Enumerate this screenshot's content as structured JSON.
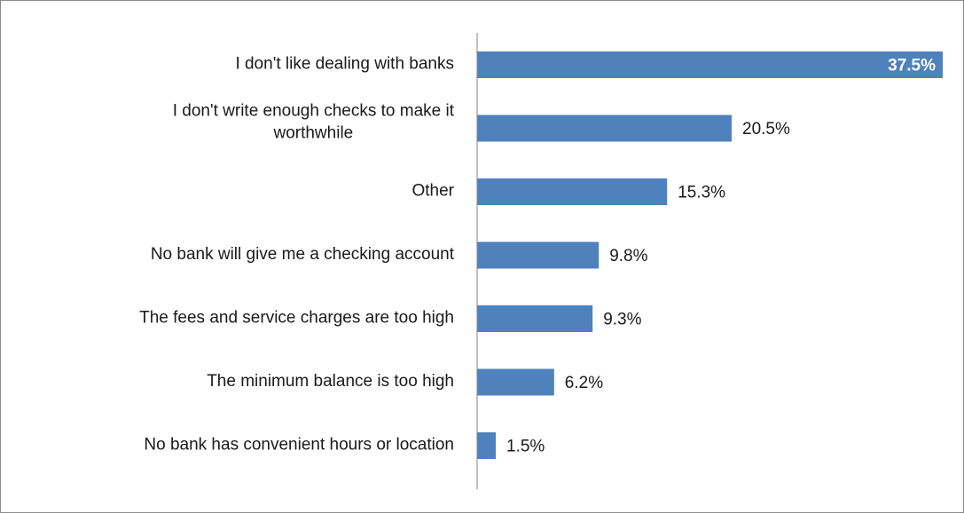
{
  "chart_data": {
    "type": "bar",
    "orientation": "horizontal",
    "categories": [
      "I don't like dealing with banks",
      "I don't write enough checks to make it worthwhile",
      "Other",
      "No bank will give me a checking account",
      "The fees and service charges are too high",
      "The minimum balance is too high",
      "No bank has convenient hours or location"
    ],
    "category_lines": [
      [
        "I don't like dealing with banks"
      ],
      [
        "I don't write enough checks to make it",
        "worthwhile"
      ],
      [
        "Other"
      ],
      [
        "No bank will give me a checking account"
      ],
      [
        "The fees and service charges are too high"
      ],
      [
        "The minimum balance is too high"
      ],
      [
        "No bank has convenient hours or location"
      ]
    ],
    "values": [
      37.5,
      20.5,
      15.3,
      9.8,
      9.3,
      6.2,
      1.5
    ],
    "data_labels": [
      "37.5%",
      "20.5%",
      "15.3%",
      "9.8%",
      "9.3%",
      "6.2%",
      "1.5%"
    ],
    "xlim": [
      0,
      37.5
    ],
    "bar_color": "#4f81bd",
    "axis_color": "#808080",
    "grid": false,
    "legend": "none"
  }
}
